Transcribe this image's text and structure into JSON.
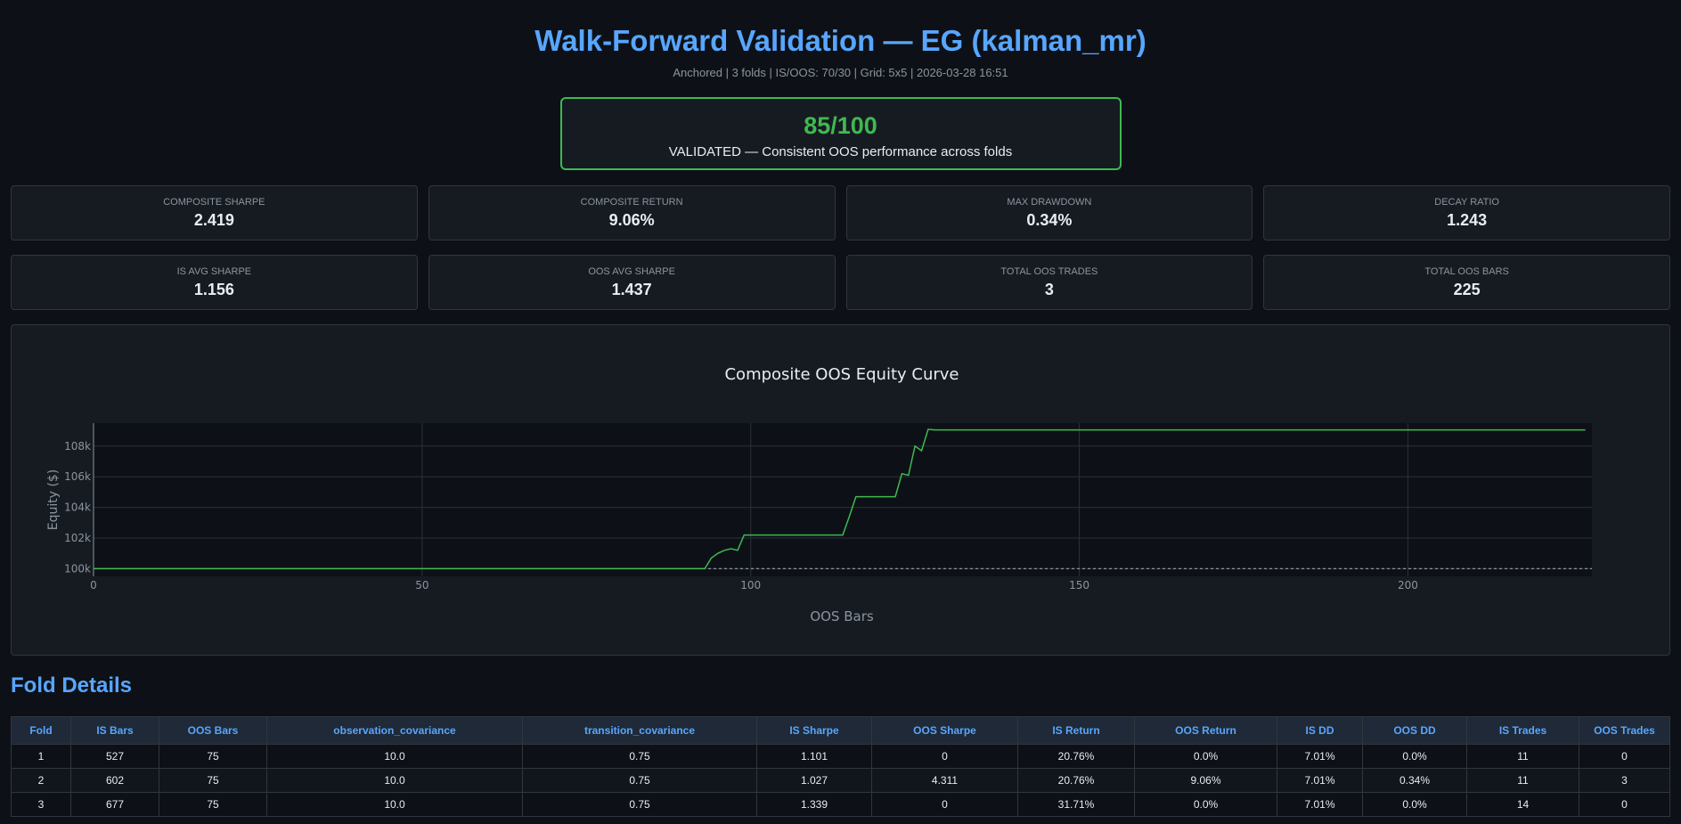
{
  "header": {
    "title": "Walk-Forward Validation — EG (kalman_mr)",
    "subtitle": "Anchored | 3 folds | IS/OOS: 70/30 | Grid: 5x5 | 2026-03-28 16:51"
  },
  "score": {
    "value": "85/100",
    "verdict": "VALIDATED — Consistent OOS performance across folds"
  },
  "metrics_row1": [
    {
      "label": "Composite Sharpe",
      "value": "2.419"
    },
    {
      "label": "Composite Return",
      "value": "9.06%"
    },
    {
      "label": "Max Drawdown",
      "value": "0.34%"
    },
    {
      "label": "Decay Ratio",
      "value": "1.243"
    }
  ],
  "metrics_row2": [
    {
      "label": "IS Avg Sharpe",
      "value": "1.156"
    },
    {
      "label": "OOS Avg Sharpe",
      "value": "1.437"
    },
    {
      "label": "Total OOS Trades",
      "value": "3"
    },
    {
      "label": "Total OOS Bars",
      "value": "225"
    }
  ],
  "chart_data": {
    "type": "line",
    "title": "Composite OOS Equity Curve",
    "xlabel": "OOS Bars",
    "ylabel": "Equity ($)",
    "xlim": [
      0,
      228
    ],
    "ylim": [
      99500,
      109500
    ],
    "x_ticks": [
      0,
      50,
      100,
      150,
      200
    ],
    "y_ticks": [
      100000,
      102000,
      104000,
      106000,
      108000
    ],
    "y_tick_labels": [
      "100k",
      "102k",
      "104k",
      "106k",
      "108k"
    ],
    "line_color": "#3fb950",
    "baseline": {
      "y": 100000,
      "style": "dotted",
      "color": "#8b949e"
    },
    "series": [
      {
        "x": [
          0,
          93,
          94,
          95,
          96,
          97,
          98,
          99,
          114,
          115,
          116,
          122,
          123,
          124,
          125,
          126,
          127,
          128,
          227
        ],
        "y": [
          100000,
          100000,
          100700,
          101000,
          101200,
          101300,
          101200,
          102200,
          102200,
          103400,
          104700,
          104700,
          106200,
          106100,
          108000,
          107700,
          109100,
          109060,
          109060
        ]
      }
    ]
  },
  "folds": {
    "title": "Fold Details",
    "columns": [
      "Fold",
      "IS Bars",
      "OOS Bars",
      "observation_covariance",
      "transition_covariance",
      "IS Sharpe",
      "OOS Sharpe",
      "IS Return",
      "OOS Return",
      "IS DD",
      "OOS DD",
      "IS Trades",
      "OOS Trades"
    ],
    "rows": [
      [
        "1",
        "527",
        "75",
        "10.0",
        "0.75",
        "1.101",
        "0",
        "20.76%",
        "0.0%",
        "7.01%",
        "0.0%",
        "11",
        "0"
      ],
      [
        "2",
        "602",
        "75",
        "10.0",
        "0.75",
        "1.027",
        "4.311",
        "20.76%",
        "9.06%",
        "7.01%",
        "0.34%",
        "11",
        "3"
      ],
      [
        "3",
        "677",
        "75",
        "10.0",
        "0.75",
        "1.339",
        "0",
        "31.71%",
        "0.0%",
        "7.01%",
        "0.0%",
        "14",
        "0"
      ]
    ]
  }
}
